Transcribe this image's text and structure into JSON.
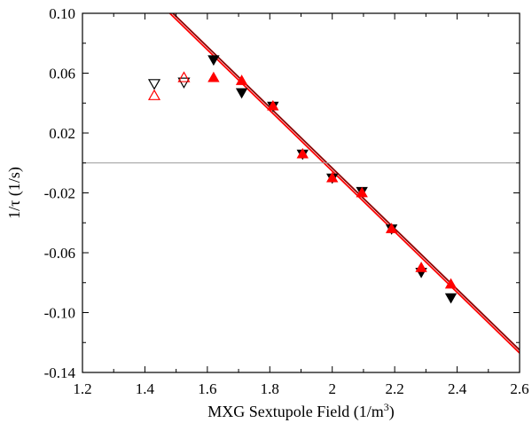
{
  "chart_data": {
    "type": "scatter",
    "xlabel": "MXG Sextupole Field  (1/m",
    "xlabel_sup": "3",
    "xlabel_end": ")",
    "ylabel": "1/τ  (1/s)",
    "xlim": [
      1.2,
      2.6
    ],
    "ylim": [
      -0.14,
      0.1
    ],
    "x_ticks": [
      1.2,
      1.4,
      1.6,
      1.8,
      2.0,
      2.2,
      2.4,
      2.6
    ],
    "x_tick_labels": [
      "1.2",
      "1.4",
      "1.6",
      "1.8",
      "2",
      "2.2",
      "2.4",
      "2.6"
    ],
    "y_ticks": [
      0.1,
      0.06,
      0.02,
      -0.02,
      -0.06,
      -0.1,
      -0.14
    ],
    "y_tick_labels": [
      "0.10",
      "0.06",
      "0.02",
      "-0.02",
      "-0.06",
      "-0.10",
      "-0.14"
    ],
    "grid": false,
    "reference_line": {
      "y": 0.0,
      "color": "#999999"
    },
    "series": [
      {
        "marker": "triangle-down",
        "color": "#000000",
        "filled": true,
        "points": [
          [
            1.62,
            0.069
          ],
          [
            1.71,
            0.047
          ],
          [
            1.81,
            0.038
          ],
          [
            1.905,
            0.006
          ],
          [
            2.0,
            -0.01
          ],
          [
            2.095,
            -0.019
          ],
          [
            2.19,
            -0.044
          ],
          [
            2.285,
            -0.073
          ],
          [
            2.38,
            -0.09
          ]
        ]
      },
      {
        "marker": "triangle-up",
        "color": "#ff0000",
        "filled": true,
        "points": [
          [
            1.62,
            0.057
          ],
          [
            1.71,
            0.055
          ],
          [
            1.81,
            0.038
          ],
          [
            1.905,
            0.006
          ],
          [
            2.0,
            -0.01
          ],
          [
            2.095,
            -0.02
          ],
          [
            2.19,
            -0.044
          ],
          [
            2.285,
            -0.07
          ],
          [
            2.38,
            -0.081
          ]
        ]
      },
      {
        "marker": "triangle-down",
        "color": "#000000",
        "filled": false,
        "points": [
          [
            1.43,
            0.053
          ],
          [
            1.525,
            0.054
          ]
        ]
      },
      {
        "marker": "triangle-up",
        "color": "#ff0000",
        "filled": false,
        "points": [
          [
            1.43,
            0.045
          ],
          [
            1.525,
            0.057
          ]
        ]
      }
    ],
    "fit_lines": [
      {
        "color": "#8b0000",
        "points": [
          [
            1.47,
            0.104
          ],
          [
            2.6,
            -0.125
          ]
        ]
      },
      {
        "color": "#ff0000",
        "points": [
          [
            1.47,
            0.102
          ],
          [
            2.6,
            -0.127
          ]
        ]
      }
    ]
  }
}
